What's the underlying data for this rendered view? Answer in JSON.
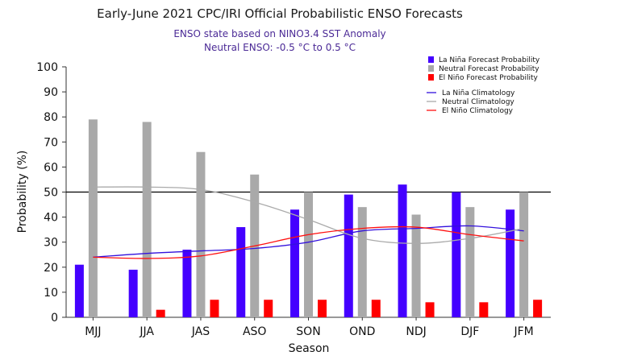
{
  "chart_data": {
    "type": "bar",
    "title": "Early-June 2021 CPC/IRI Official Probabilistic ENSO Forecasts",
    "subtitle": [
      "ENSO state based on NINO3.4 SST Anomaly",
      "Neutral ENSO: -0.5 °C to 0.5 °C"
    ],
    "xlabel": "Season",
    "ylabel": "Probability (%)",
    "ylim": [
      0,
      100
    ],
    "yticks": [
      0,
      10,
      20,
      30,
      40,
      50,
      60,
      70,
      80,
      90,
      100
    ],
    "reference_line": 50,
    "categories": [
      "MJJ",
      "JJA",
      "JAS",
      "ASO",
      "SON",
      "OND",
      "NDJ",
      "DJF",
      "JFM"
    ],
    "series": [
      {
        "name": "La Niña Forecast Probability",
        "kind": "bar",
        "color": "#4400ff",
        "values": [
          21,
          19,
          27,
          36,
          43,
          49,
          53,
          50,
          43
        ]
      },
      {
        "name": "Neutral Forecast Probability",
        "kind": "bar",
        "color": "#a9a9a9",
        "values": [
          79,
          78,
          66,
          57,
          50,
          44,
          41,
          44,
          50
        ]
      },
      {
        "name": "El Niño Forecast Probability",
        "kind": "bar",
        "color": "#ff0000",
        "values": [
          0,
          3,
          7,
          7,
          7,
          7,
          6,
          6,
          7
        ]
      },
      {
        "name": "La Niña Climatology",
        "kind": "line",
        "color": "#3311dd",
        "values": [
          24,
          25.5,
          26.5,
          27.5,
          30,
          34.5,
          35.5,
          36.5,
          34.5
        ]
      },
      {
        "name": "Neutral Climatology",
        "kind": "line",
        "color": "#aaaaaa",
        "values": [
          52,
          52,
          51,
          46,
          39,
          31.5,
          29.5,
          31.5,
          35.5
        ]
      },
      {
        "name": "El Niño Climatology",
        "kind": "line",
        "color": "#ff1111",
        "values": [
          24,
          23.5,
          24.5,
          28.5,
          33,
          35.5,
          36,
          33,
          30.5
        ]
      }
    ],
    "legend_position": "top-right",
    "grid": false
  }
}
